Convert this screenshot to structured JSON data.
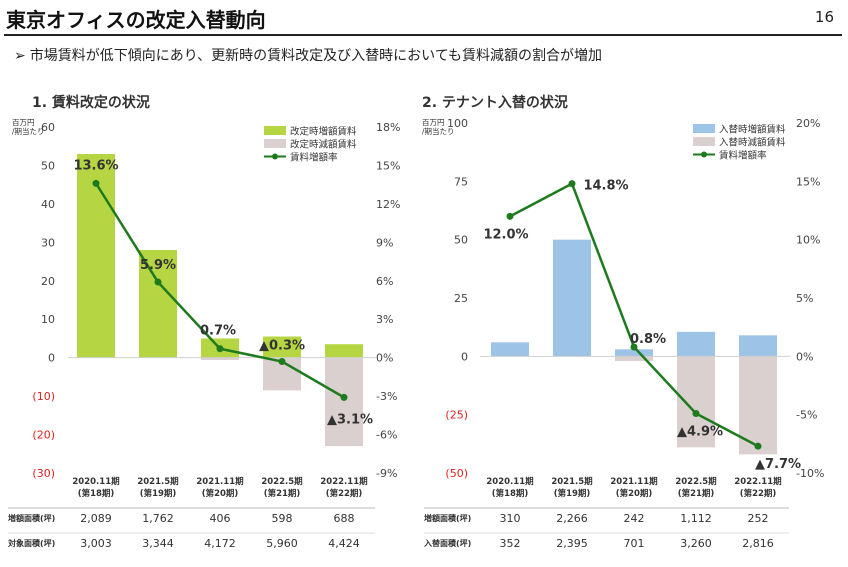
{
  "header": {
    "title": "東京オフィスの改定入替動向",
    "page_number": "16",
    "bullet_mark": "➢",
    "bullet": "市場賃料が低下傾向にあり、更新時の賃料改定及び入替時においても賃料減額の割合が増加"
  },
  "chart_data": [
    {
      "type": "bar",
      "title": "1. 賃料改定の状況",
      "unit_label": [
        "百万円",
        "/期当たり"
      ],
      "categories": [
        [
          "2020.11期",
          "(第18期)"
        ],
        [
          "2021.5期",
          "(第19期)"
        ],
        [
          "2021.11期",
          "(第20期)"
        ],
        [
          "2022.5期",
          "(第21期)"
        ],
        [
          "2022.11期",
          "(第22期)"
        ]
      ],
      "y_ticks": [
        "60",
        "50",
        "40",
        "30",
        "20",
        "10",
        "0",
        "(10)",
        "(20)",
        "(30)"
      ],
      "y2_ticks": [
        "18%",
        "15%",
        "12%",
        "9%",
        "6%",
        "3%",
        "0%",
        "-3%",
        "-6%",
        "-9%"
      ],
      "ylim": [
        -30,
        60
      ],
      "y2lim": [
        -9,
        18
      ],
      "series": [
        {
          "name": "改定時増額賃料",
          "kind": "bar",
          "color": "#b5d642",
          "values": [
            53,
            28,
            5,
            5.5,
            3.5
          ]
        },
        {
          "name": "改定時減額賃料",
          "kind": "bar",
          "color": "#d9d0cf",
          "values": [
            0,
            0,
            -0.6,
            -8.5,
            -23
          ]
        },
        {
          "name": "賃料増額率",
          "kind": "line",
          "axis": "y2",
          "color": "#1d7a1d",
          "values": [
            13.6,
            5.9,
            0.7,
            -0.3,
            -3.1
          ]
        }
      ],
      "rate_labels": [
        "13.6%",
        "5.9%",
        "0.7%",
        "▲0.3%",
        "▲3.1%"
      ],
      "table": [
        {
          "label": "増額面積(坪)",
          "values": [
            "2,089",
            "1,762",
            "406",
            "598",
            "688"
          ]
        },
        {
          "label": "対象面積(坪)",
          "values": [
            "3,003",
            "3,344",
            "4,172",
            "5,960",
            "4,424"
          ]
        }
      ]
    },
    {
      "type": "bar",
      "title": "2. テナント入替の状況",
      "unit_label": [
        "百万円",
        "/期当たり"
      ],
      "categories": [
        [
          "2020.11期",
          "(第18期)"
        ],
        [
          "2021.5期",
          "(第19期)"
        ],
        [
          "2021.11期",
          "(第20期)"
        ],
        [
          "2022.5期",
          "(第21期)"
        ],
        [
          "2022.11期",
          "(第22期)"
        ]
      ],
      "y_ticks": [
        "100",
        "75",
        "50",
        "25",
        "0",
        "(25)",
        "(50)"
      ],
      "y2_ticks": [
        "20%",
        "15%",
        "10%",
        "5%",
        "0%",
        "-5%",
        "-10%"
      ],
      "ylim": [
        -50,
        100
      ],
      "y2lim": [
        -10,
        20
      ],
      "series": [
        {
          "name": "入替時増額賃料",
          "kind": "bar",
          "color": "#9dc3e6",
          "values": [
            6,
            50,
            3,
            10.5,
            9
          ]
        },
        {
          "name": "入替時減額賃料",
          "kind": "bar",
          "color": "#d9d0cf",
          "values": [
            0,
            0,
            -2,
            -39,
            -42
          ]
        },
        {
          "name": "賃料増額率",
          "kind": "line",
          "axis": "y2",
          "color": "#1d7a1d",
          "values": [
            12.0,
            14.8,
            0.8,
            -4.9,
            -7.7
          ]
        }
      ],
      "rate_labels": [
        "12.0%",
        "14.8%",
        "0.8%",
        "▲4.9%",
        "▲7.7%"
      ],
      "table": [
        {
          "label": "増額面積(坪)",
          "values": [
            "310",
            "2,266",
            "242",
            "1,112",
            "252"
          ]
        },
        {
          "label": "入替面積(坪)",
          "values": [
            "352",
            "2,395",
            "701",
            "3,260",
            "2,816"
          ]
        }
      ]
    }
  ]
}
